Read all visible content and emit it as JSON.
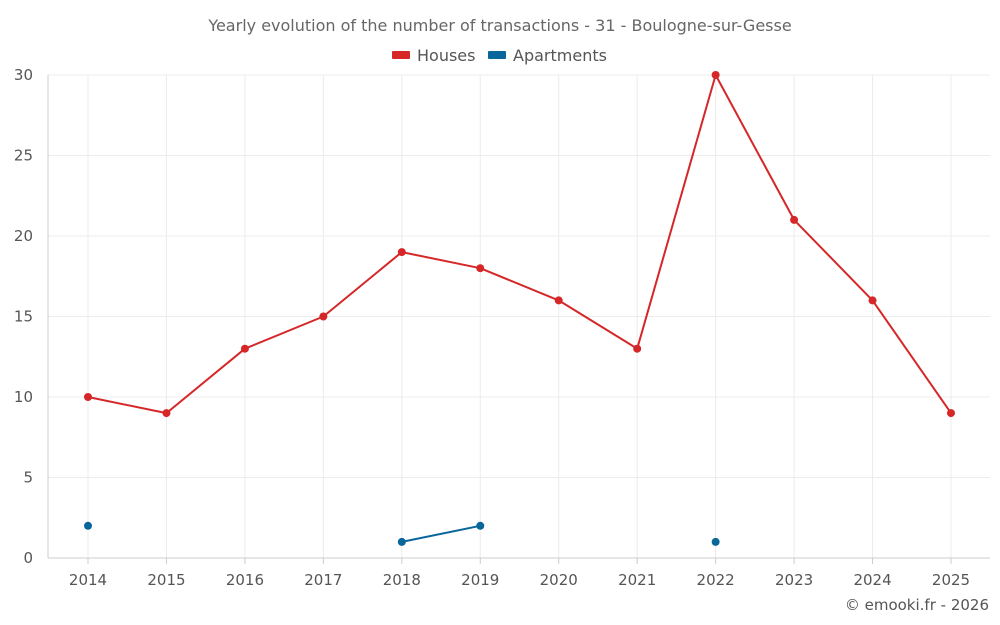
{
  "chart_data": {
    "type": "line",
    "title": "Yearly evolution of the number of transactions - 31 - Boulogne-sur-Gesse",
    "categories": [
      "2014",
      "2015",
      "2016",
      "2017",
      "2018",
      "2019",
      "2020",
      "2021",
      "2022",
      "2023",
      "2024",
      "2025"
    ],
    "series": [
      {
        "name": "Houses",
        "color": "#d62728",
        "values": [
          10,
          9,
          13,
          15,
          19,
          18,
          16,
          13,
          30,
          21,
          16,
          9
        ]
      },
      {
        "name": "Apartments",
        "color": "#08669b",
        "values": [
          2,
          null,
          null,
          null,
          1,
          2,
          null,
          null,
          1,
          null,
          null,
          null
        ]
      }
    ],
    "ylim": [
      0,
      30
    ],
    "yticks": [
      "0",
      "5",
      "10",
      "15",
      "20",
      "25",
      "30"
    ],
    "xlabel": "",
    "ylabel": "",
    "grid": true,
    "legend": "top-center"
  },
  "footer": {
    "credit": "© emooki.fr - 2026"
  }
}
